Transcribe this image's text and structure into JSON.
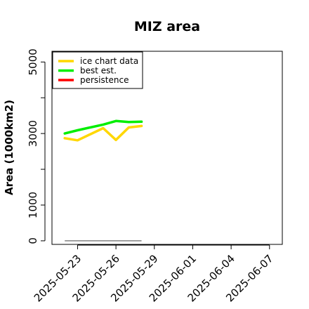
{
  "chart_data": {
    "type": "line",
    "title": "MIZ area",
    "xlabel": "",
    "ylabel": "Area (1000km2)",
    "xlim": [
      "2025-05-21",
      "2025-06-08"
    ],
    "ylim": [
      -100,
      5300
    ],
    "y_ticks": [
      0,
      1000,
      3000,
      5000
    ],
    "x_ticks": [
      "2025-05-23",
      "2025-05-26",
      "2025-05-29",
      "2025-06-01",
      "2025-06-04",
      "2025-06-07"
    ],
    "grid": false,
    "legend_position": "top-left",
    "series": [
      {
        "name": "ice chart data",
        "color": "#FFD700",
        "x": [
          "2025-05-22",
          "2025-05-23",
          "2025-05-25",
          "2025-05-26",
          "2025-05-27",
          "2025-05-28"
        ],
        "y": [
          2870,
          2810,
          3150,
          2820,
          3170,
          3210
        ]
      },
      {
        "name": "best est.",
        "color": "#00EE00",
        "x": [
          "2025-05-22",
          "2025-05-23",
          "2025-05-25",
          "2025-05-26",
          "2025-05-27",
          "2025-05-28"
        ],
        "y": [
          3000,
          3090,
          3250,
          3350,
          3320,
          3330
        ]
      },
      {
        "name": "persistence",
        "color": "#FF0000",
        "x": [],
        "y": []
      }
    ],
    "reference_line": {
      "color": "#808080",
      "x": [
        "2025-05-22",
        "2025-05-28"
      ],
      "y": [
        0,
        0
      ]
    }
  }
}
